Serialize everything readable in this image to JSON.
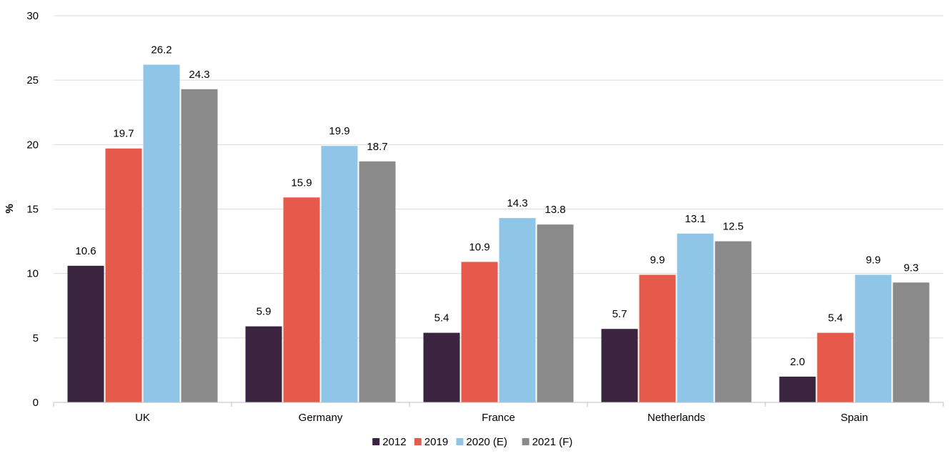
{
  "chart_data": {
    "type": "bar",
    "categories": [
      "UK",
      "Germany",
      "France",
      "Netherlands",
      "Spain"
    ],
    "series": [
      {
        "name": "2012",
        "color": "#3b2440",
        "values": [
          10.6,
          5.9,
          5.4,
          5.7,
          2.0
        ]
      },
      {
        "name": "2019",
        "color": "#e65a4c",
        "values": [
          19.7,
          15.9,
          10.9,
          9.9,
          5.4
        ]
      },
      {
        "name": "2020 (E)",
        "color": "#8fc6e8",
        "values": [
          26.2,
          19.9,
          14.3,
          13.1,
          9.9
        ]
      },
      {
        "name": "2021 (F)",
        "color": "#8a8a8a",
        "values": [
          24.3,
          18.7,
          13.8,
          12.5,
          9.3
        ]
      }
    ],
    "title": "",
    "xlabel": "",
    "ylabel": "%",
    "ylim": [
      0,
      30
    ],
    "yticks": [
      0,
      5,
      10,
      15,
      20,
      25,
      30
    ],
    "grid": true,
    "legend_position": "bottom-center",
    "value_format": "one-decimal"
  }
}
